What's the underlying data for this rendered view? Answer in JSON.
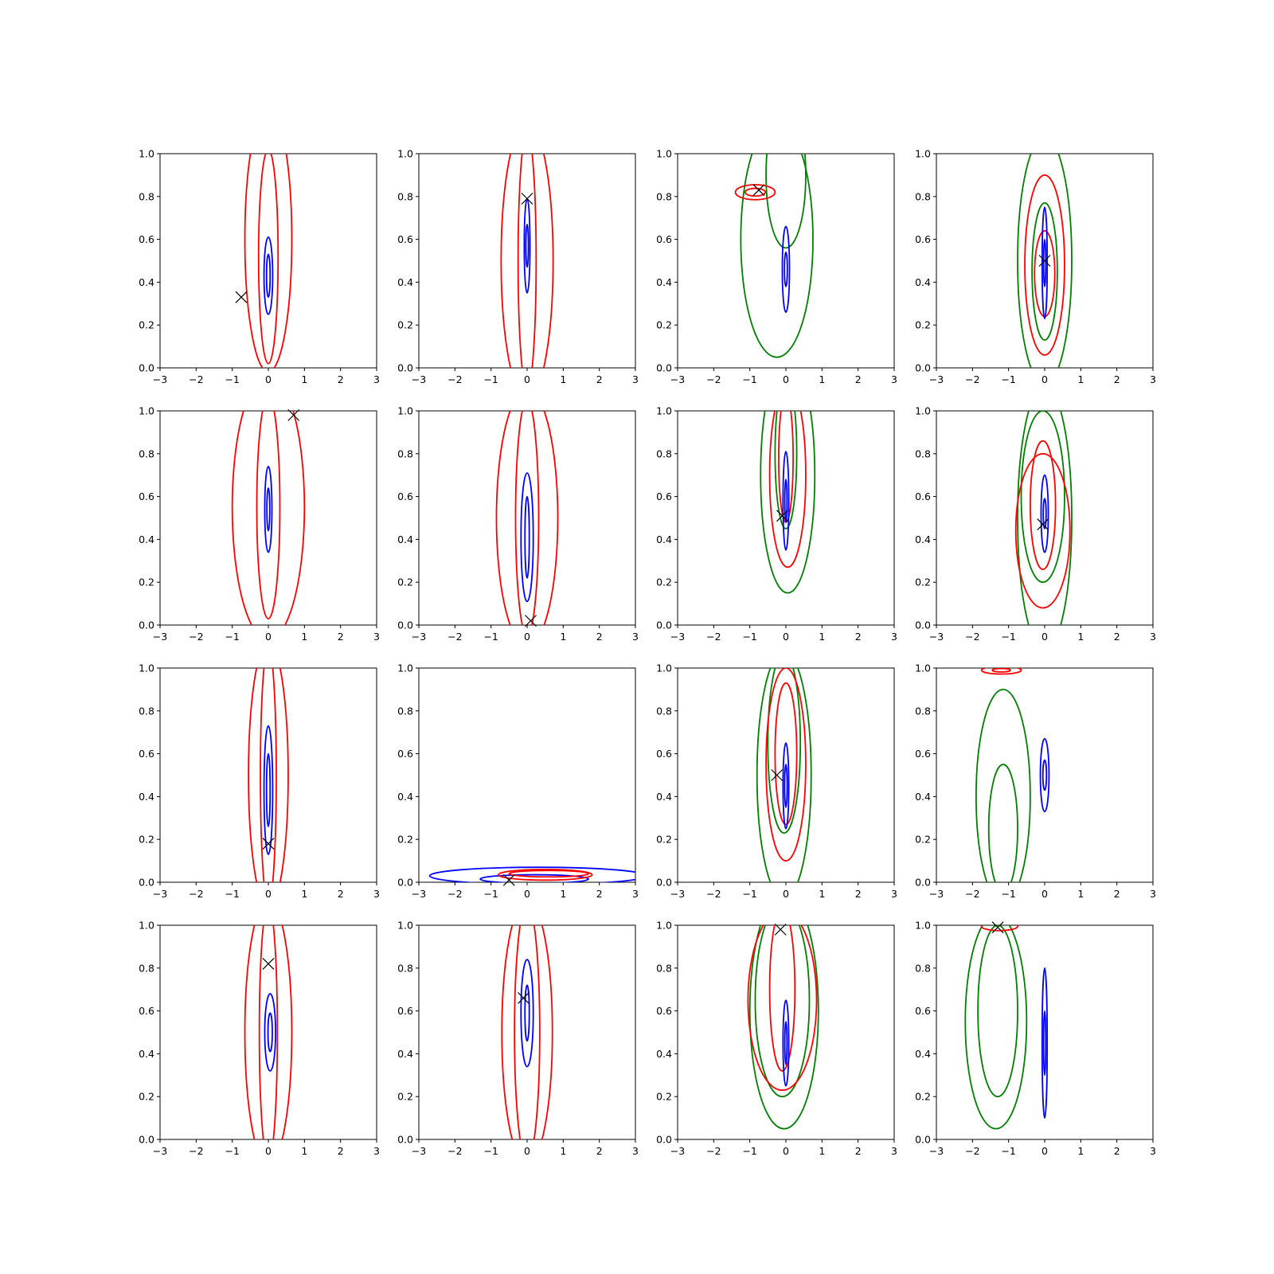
{
  "colors": {
    "red": "#ff0000",
    "blue": "#0000ff",
    "green": "#008000",
    "marker": "#000000"
  },
  "chart_data": {
    "type": "contour",
    "layout": "4x4 grid of subplots",
    "xlim": [
      -3,
      3
    ],
    "ylim": [
      0,
      1
    ],
    "xticks": [
      "−3",
      "−2",
      "−1",
      "0",
      "1",
      "2",
      "3"
    ],
    "yticks": [
      "0.0",
      "0.2",
      "0.4",
      "0.6",
      "0.8",
      "1.0"
    ],
    "grid": false,
    "panels": [
      {
        "marker": [
          -0.75,
          0.33
        ],
        "contours": [
          {
            "color": "red",
            "cx": 0.0,
            "cy": 0.6,
            "rx": 0.65,
            "ry": 0.62
          },
          {
            "color": "red",
            "cx": 0.0,
            "cy": 0.52,
            "rx": 0.27,
            "ry": 0.5
          },
          {
            "color": "blue",
            "cx": 0.0,
            "cy": 0.43,
            "rx": 0.12,
            "ry": 0.18
          },
          {
            "color": "blue",
            "cx": 0.0,
            "cy": 0.43,
            "rx": 0.05,
            "ry": 0.1
          }
        ]
      },
      {
        "marker": [
          0.0,
          0.79
        ],
        "contours": [
          {
            "color": "red",
            "cx": 0.0,
            "cy": 0.5,
            "rx": 0.72,
            "ry": 0.65
          },
          {
            "color": "red",
            "cx": 0.0,
            "cy": 0.5,
            "rx": 0.25,
            "ry": 0.6
          },
          {
            "color": "blue",
            "cx": 0.0,
            "cy": 0.57,
            "rx": 0.08,
            "ry": 0.22
          },
          {
            "color": "blue",
            "cx": 0.0,
            "cy": 0.57,
            "rx": 0.035,
            "ry": 0.1
          }
        ]
      },
      {
        "marker": [
          -0.75,
          0.83
        ],
        "contours": [
          {
            "color": "green",
            "cx": -0.25,
            "cy": 0.6,
            "rx": 1.0,
            "ry": 0.55
          },
          {
            "color": "green",
            "cx": 0.0,
            "cy": 0.9,
            "rx": 0.55,
            "ry": 0.34
          },
          {
            "color": "red",
            "cx": -0.85,
            "cy": 0.82,
            "rx": 0.55,
            "ry": 0.035
          },
          {
            "color": "red",
            "cx": -0.85,
            "cy": 0.82,
            "rx": 0.28,
            "ry": 0.018
          },
          {
            "color": "blue",
            "cx": 0.0,
            "cy": 0.46,
            "rx": 0.1,
            "ry": 0.2
          },
          {
            "color": "blue",
            "cx": 0.0,
            "cy": 0.46,
            "rx": 0.04,
            "ry": 0.08
          }
        ]
      },
      {
        "marker": [
          0.0,
          0.5
        ],
        "contours": [
          {
            "color": "green",
            "cx": 0.0,
            "cy": 0.5,
            "rx": 0.75,
            "ry": 0.58
          },
          {
            "color": "green",
            "cx": 0.0,
            "cy": 0.45,
            "rx": 0.35,
            "ry": 0.32
          },
          {
            "color": "red",
            "cx": 0.0,
            "cy": 0.48,
            "rx": 0.55,
            "ry": 0.42
          },
          {
            "color": "red",
            "cx": 0.0,
            "cy": 0.44,
            "rx": 0.28,
            "ry": 0.2
          },
          {
            "color": "blue",
            "cx": 0.0,
            "cy": 0.49,
            "rx": 0.07,
            "ry": 0.26
          },
          {
            "color": "blue",
            "cx": 0.0,
            "cy": 0.49,
            "rx": 0.03,
            "ry": 0.11
          }
        ]
      },
      {
        "marker": [
          0.7,
          0.98
        ],
        "contours": [
          {
            "color": "red",
            "cx": 0.0,
            "cy": 0.55,
            "rx": 1.0,
            "ry": 0.62
          },
          {
            "color": "red",
            "cx": 0.0,
            "cy": 0.55,
            "rx": 0.32,
            "ry": 0.52
          },
          {
            "color": "blue",
            "cx": 0.0,
            "cy": 0.54,
            "rx": 0.1,
            "ry": 0.2
          },
          {
            "color": "blue",
            "cx": 0.0,
            "cy": 0.54,
            "rx": 0.04,
            "ry": 0.1
          }
        ]
      },
      {
        "marker": [
          0.1,
          0.02
        ],
        "contours": [
          {
            "color": "red",
            "cx": 0.0,
            "cy": 0.5,
            "rx": 0.85,
            "ry": 0.6
          },
          {
            "color": "red",
            "cx": 0.0,
            "cy": 0.5,
            "rx": 0.32,
            "ry": 0.55
          },
          {
            "color": "blue",
            "cx": 0.0,
            "cy": 0.41,
            "rx": 0.17,
            "ry": 0.3
          },
          {
            "color": "blue",
            "cx": 0.0,
            "cy": 0.41,
            "rx": 0.06,
            "ry": 0.19
          }
        ]
      },
      {
        "marker": [
          -0.1,
          0.51
        ],
        "contours": [
          {
            "color": "green",
            "cx": 0.05,
            "cy": 0.7,
            "rx": 0.75,
            "ry": 0.55
          },
          {
            "color": "green",
            "cx": 0.0,
            "cy": 0.8,
            "rx": 0.3,
            "ry": 0.35
          },
          {
            "color": "red",
            "cx": 0.05,
            "cy": 0.7,
            "rx": 0.5,
            "ry": 0.43
          },
          {
            "color": "red",
            "cx": 0.0,
            "cy": 0.78,
            "rx": 0.2,
            "ry": 0.3
          },
          {
            "color": "blue",
            "cx": 0.0,
            "cy": 0.58,
            "rx": 0.08,
            "ry": 0.23
          },
          {
            "color": "blue",
            "cx": 0.0,
            "cy": 0.58,
            "rx": 0.03,
            "ry": 0.1
          }
        ]
      },
      {
        "marker": [
          -0.05,
          0.47
        ],
        "contours": [
          {
            "color": "green",
            "cx": 0.0,
            "cy": 0.5,
            "rx": 0.75,
            "ry": 0.62
          },
          {
            "color": "green",
            "cx": -0.05,
            "cy": 0.6,
            "rx": 0.6,
            "ry": 0.4
          },
          {
            "color": "red",
            "cx": -0.05,
            "cy": 0.44,
            "rx": 0.75,
            "ry": 0.36
          },
          {
            "color": "red",
            "cx": -0.05,
            "cy": 0.56,
            "rx": 0.35,
            "ry": 0.3
          },
          {
            "color": "blue",
            "cx": 0.0,
            "cy": 0.52,
            "rx": 0.1,
            "ry": 0.18
          },
          {
            "color": "blue",
            "cx": 0.0,
            "cy": 0.52,
            "rx": 0.04,
            "ry": 0.07
          }
        ]
      },
      {
        "marker": [
          0.0,
          0.18
        ],
        "contours": [
          {
            "color": "red",
            "cx": 0.0,
            "cy": 0.5,
            "rx": 0.55,
            "ry": 0.62
          },
          {
            "color": "red",
            "cx": 0.0,
            "cy": 0.5,
            "rx": 0.22,
            "ry": 0.6
          },
          {
            "color": "blue",
            "cx": 0.0,
            "cy": 0.43,
            "rx": 0.12,
            "ry": 0.3
          },
          {
            "color": "blue",
            "cx": 0.0,
            "cy": 0.43,
            "rx": 0.05,
            "ry": 0.17
          }
        ]
      },
      {
        "marker": [
          -0.5,
          0.01
        ],
        "contours": [
          {
            "color": "blue",
            "cx": 0.3,
            "cy": 0.03,
            "rx": 3.0,
            "ry": 0.04
          },
          {
            "color": "blue",
            "cx": 0.2,
            "cy": 0.015,
            "rx": 1.5,
            "ry": 0.02
          },
          {
            "color": "red",
            "cx": 0.5,
            "cy": 0.035,
            "rx": 1.3,
            "ry": 0.025
          },
          {
            "color": "red",
            "cx": 0.6,
            "cy": 0.04,
            "rx": 1.1,
            "ry": 0.015
          }
        ]
      },
      {
        "marker": [
          -0.25,
          0.5
        ],
        "contours": [
          {
            "color": "green",
            "cx": -0.05,
            "cy": 0.5,
            "rx": 0.75,
            "ry": 0.58
          },
          {
            "color": "green",
            "cx": -0.05,
            "cy": 0.65,
            "rx": 0.45,
            "ry": 0.42
          },
          {
            "color": "red",
            "cx": 0.0,
            "cy": 0.55,
            "rx": 0.55,
            "ry": 0.45
          },
          {
            "color": "red",
            "cx": 0.0,
            "cy": 0.6,
            "rx": 0.3,
            "ry": 0.33
          },
          {
            "color": "blue",
            "cx": 0.0,
            "cy": 0.45,
            "rx": 0.08,
            "ry": 0.2
          },
          {
            "color": "blue",
            "cx": 0.0,
            "cy": 0.45,
            "rx": 0.035,
            "ry": 0.1
          }
        ]
      },
      {
        "marker": null,
        "contours": [
          {
            "color": "green",
            "cx": -1.15,
            "cy": 0.4,
            "rx": 0.75,
            "ry": 0.5
          },
          {
            "color": "green",
            "cx": -1.15,
            "cy": 0.25,
            "rx": 0.4,
            "ry": 0.3
          },
          {
            "color": "red",
            "cx": -1.2,
            "cy": 0.99,
            "rx": 0.55,
            "ry": 0.018
          },
          {
            "color": "red",
            "cx": -1.2,
            "cy": 0.99,
            "rx": 0.25,
            "ry": 0.008
          },
          {
            "color": "blue",
            "cx": 0.0,
            "cy": 0.5,
            "rx": 0.12,
            "ry": 0.17
          },
          {
            "color": "blue",
            "cx": 0.0,
            "cy": 0.5,
            "rx": 0.05,
            "ry": 0.07
          }
        ]
      },
      {
        "marker": [
          0.0,
          0.82
        ],
        "contours": [
          {
            "color": "red",
            "cx": 0.0,
            "cy": 0.5,
            "rx": 0.65,
            "ry": 0.62
          },
          {
            "color": "red",
            "cx": 0.0,
            "cy": 0.5,
            "rx": 0.25,
            "ry": 0.6
          },
          {
            "color": "blue",
            "cx": 0.05,
            "cy": 0.5,
            "rx": 0.15,
            "ry": 0.18
          },
          {
            "color": "blue",
            "cx": 0.05,
            "cy": 0.5,
            "rx": 0.06,
            "ry": 0.09
          }
        ]
      },
      {
        "marker": [
          -0.1,
          0.66
        ],
        "contours": [
          {
            "color": "red",
            "cx": 0.0,
            "cy": 0.5,
            "rx": 0.7,
            "ry": 0.62
          },
          {
            "color": "red",
            "cx": 0.0,
            "cy": 0.5,
            "rx": 0.35,
            "ry": 0.6
          },
          {
            "color": "blue",
            "cx": 0.0,
            "cy": 0.59,
            "rx": 0.17,
            "ry": 0.25
          },
          {
            "color": "blue",
            "cx": 0.0,
            "cy": 0.59,
            "rx": 0.06,
            "ry": 0.13
          }
        ]
      },
      {
        "marker": [
          -0.15,
          0.98
        ],
        "contours": [
          {
            "color": "green",
            "cx": -0.05,
            "cy": 0.6,
            "rx": 0.95,
            "ry": 0.55
          },
          {
            "color": "green",
            "cx": -0.1,
            "cy": 0.65,
            "rx": 0.75,
            "ry": 0.45
          },
          {
            "color": "red",
            "cx": -0.1,
            "cy": 0.65,
            "rx": 0.95,
            "ry": 0.42
          },
          {
            "color": "red",
            "cx": -0.1,
            "cy": 0.7,
            "rx": 0.35,
            "ry": 0.38
          },
          {
            "color": "blue",
            "cx": 0.0,
            "cy": 0.45,
            "rx": 0.08,
            "ry": 0.2
          },
          {
            "color": "blue",
            "cx": 0.0,
            "cy": 0.45,
            "rx": 0.03,
            "ry": 0.1
          }
        ]
      },
      {
        "marker": [
          -1.3,
          0.99
        ],
        "contours": [
          {
            "color": "green",
            "cx": -1.35,
            "cy": 0.55,
            "rx": 0.85,
            "ry": 0.5
          },
          {
            "color": "green",
            "cx": -1.3,
            "cy": 0.6,
            "rx": 0.55,
            "ry": 0.4
          },
          {
            "color": "red",
            "cx": -1.25,
            "cy": 0.995,
            "rx": 0.5,
            "ry": 0.02
          },
          {
            "color": "blue",
            "cx": 0.0,
            "cy": 0.45,
            "rx": 0.07,
            "ry": 0.35
          },
          {
            "color": "blue",
            "cx": 0.0,
            "cy": 0.45,
            "rx": 0.03,
            "ry": 0.15
          }
        ]
      }
    ]
  }
}
